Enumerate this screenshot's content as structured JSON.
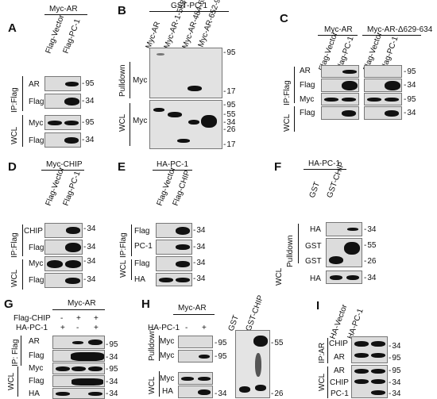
{
  "panels": {
    "A": {
      "letter": "A",
      "title": "Myc-AR",
      "lanes": [
        "Flag-Vector",
        "Flag-PC-1"
      ],
      "rows": [
        "AR",
        "Flag",
        "Myc",
        "Flag"
      ],
      "mw": [
        "95",
        "34",
        "95",
        "34"
      ],
      "ip": "IP:Flag",
      "wcl": "WCL"
    },
    "B": {
      "letter": "B",
      "title": "GST-PC-1",
      "lanes": [
        "Myc-AR",
        "Myc-AR-1-568",
        "Myc-AR-484-651",
        "Myc-AR-652-918"
      ],
      "pulldown": "Pulldown",
      "wcl": "WCL",
      "row_pull": "Myc",
      "row_wcl": "Myc",
      "mw_pull": [
        "95",
        "17"
      ],
      "mw_wcl": [
        "95",
        "55",
        "34",
        "26",
        "17"
      ]
    },
    "C": {
      "letter": "C",
      "title_left": "Myc-AR",
      "title_right": "Myc-AR-Δ629-634",
      "lanes": [
        "Flag-Vector",
        "Flag-PC-1",
        "Flag-Vector",
        "Flag-PC-1"
      ],
      "rows": [
        "AR",
        "Flag",
        "Myc",
        "Flag"
      ],
      "mw": [
        "95",
        "34",
        "95",
        "34"
      ],
      "ip": "IP:Flag",
      "wcl": "WCL"
    },
    "D": {
      "letter": "D",
      "title": "Myc-CHIP",
      "lanes": [
        "Flag-Vector",
        "Flag-PC-1"
      ],
      "rows": [
        "CHIP",
        "Flag",
        "Myc",
        "Flag"
      ],
      "mw": [
        "34",
        "34",
        "34",
        "34"
      ],
      "ip": "IP:Flag",
      "wcl": "WCL"
    },
    "E": {
      "letter": "E",
      "title": "HA-PC-1",
      "lanes": [
        "Flag-Vector",
        "Flag-CHIP"
      ],
      "rows": [
        "Flag",
        "PC-1",
        "Flag",
        "HA"
      ],
      "mw": [
        "34",
        "34",
        "34",
        "34"
      ],
      "ip": "IP:Flag",
      "wcl": "WCL"
    },
    "F": {
      "letter": "F",
      "title": "HA-PC-1",
      "lanes": [
        "GST",
        "GST-CHIP"
      ],
      "rows": [
        "HA",
        "GST",
        "GST",
        "HA"
      ],
      "mw": [
        "34",
        "55",
        "26",
        "34"
      ],
      "pulldown": "Pulldown",
      "wcl": "WCL"
    },
    "G": {
      "letter": "G",
      "title": "Myc-AR",
      "treat": [
        "Flag-CHIP",
        "HA-PC-1"
      ],
      "signs": [
        [
          "-",
          "+",
          "+"
        ],
        [
          "+",
          "-",
          "+"
        ]
      ],
      "rows": [
        "AR",
        "Flag",
        "Myc",
        "Flag",
        "HA"
      ],
      "mw": [
        "95",
        "34",
        "95",
        "34",
        "34"
      ],
      "ip": "IP: Flag",
      "wcl": "WCL"
    },
    "H": {
      "letter": "H",
      "title": "Myc-AR",
      "treat": "HA-PC-1",
      "signs": [
        "-",
        "+"
      ],
      "rows": [
        "Myc",
        "Myc",
        "Myc",
        "HA"
      ],
      "mw": [
        "95",
        "95",
        "34"
      ],
      "pulldown": "Pulldown",
      "wcl": "WCL",
      "gel_lanes": [
        "GST",
        "GST-CHIP"
      ],
      "gel_mw": [
        "55",
        "26"
      ]
    },
    "I": {
      "letter": "I",
      "lanes": [
        "HA-Vector",
        "HA-PC-1"
      ],
      "rows": [
        "CHIP",
        "AR",
        "AR",
        "CHIP",
        "PC-1"
      ],
      "mw": [
        "34",
        "95",
        "95",
        "34",
        "34"
      ],
      "ip": "IP:AR",
      "wcl": "WCL"
    }
  }
}
